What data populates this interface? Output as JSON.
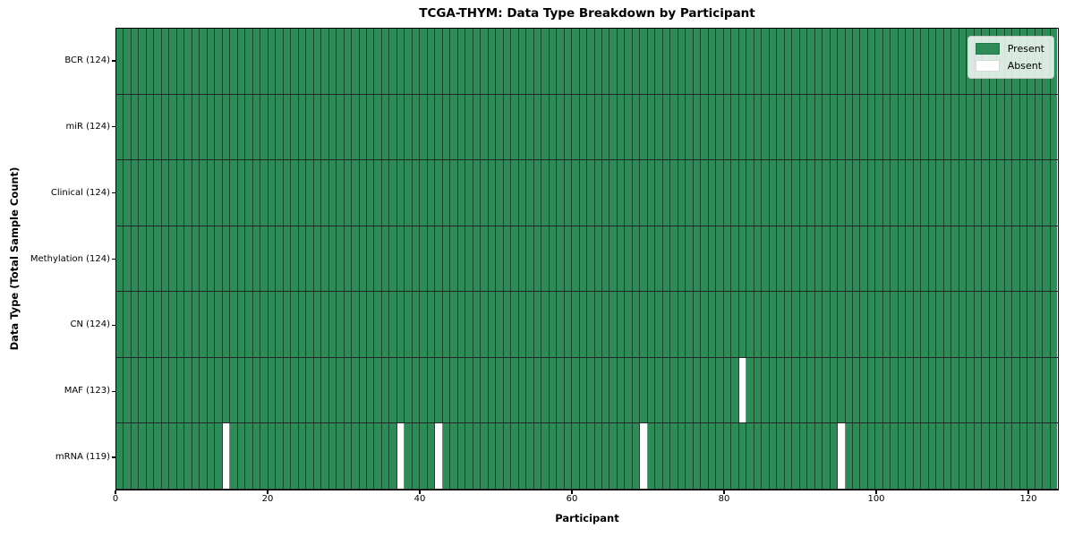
{
  "chart_data": {
    "type": "heatmap",
    "title": "TCGA-THYM: Data Type Breakdown by Participant",
    "xlabel": "Participant",
    "ylabel": "Data Type (Total Sample Count)",
    "n_participants": 124,
    "xlim": [
      0,
      124
    ],
    "x_ticks": [
      0,
      20,
      40,
      60,
      80,
      100,
      120
    ],
    "grid": false,
    "legend_position": "upper right",
    "legend": [
      {
        "label": "Present",
        "color": "#2e8b57"
      },
      {
        "label": "Absent",
        "color": "#ffffff"
      }
    ],
    "rows": [
      {
        "label": "BCR (124)",
        "data_type": "BCR",
        "present_count": 124,
        "absent_participants": []
      },
      {
        "label": "miR (124)",
        "data_type": "miR",
        "present_count": 124,
        "absent_participants": []
      },
      {
        "label": "Clinical (124)",
        "data_type": "Clinical",
        "present_count": 124,
        "absent_participants": []
      },
      {
        "label": "Methylation (124)",
        "data_type": "Methylation",
        "present_count": 124,
        "absent_participants": []
      },
      {
        "label": "CN (124)",
        "data_type": "CN",
        "present_count": 124,
        "absent_participants": []
      },
      {
        "label": "MAF (123)",
        "data_type": "MAF",
        "present_count": 123,
        "absent_participants": [
          82
        ]
      },
      {
        "label": "mRNA (119)",
        "data_type": "mRNA",
        "present_count": 119,
        "absent_participants": [
          14,
          37,
          42,
          69,
          95
        ]
      }
    ]
  }
}
